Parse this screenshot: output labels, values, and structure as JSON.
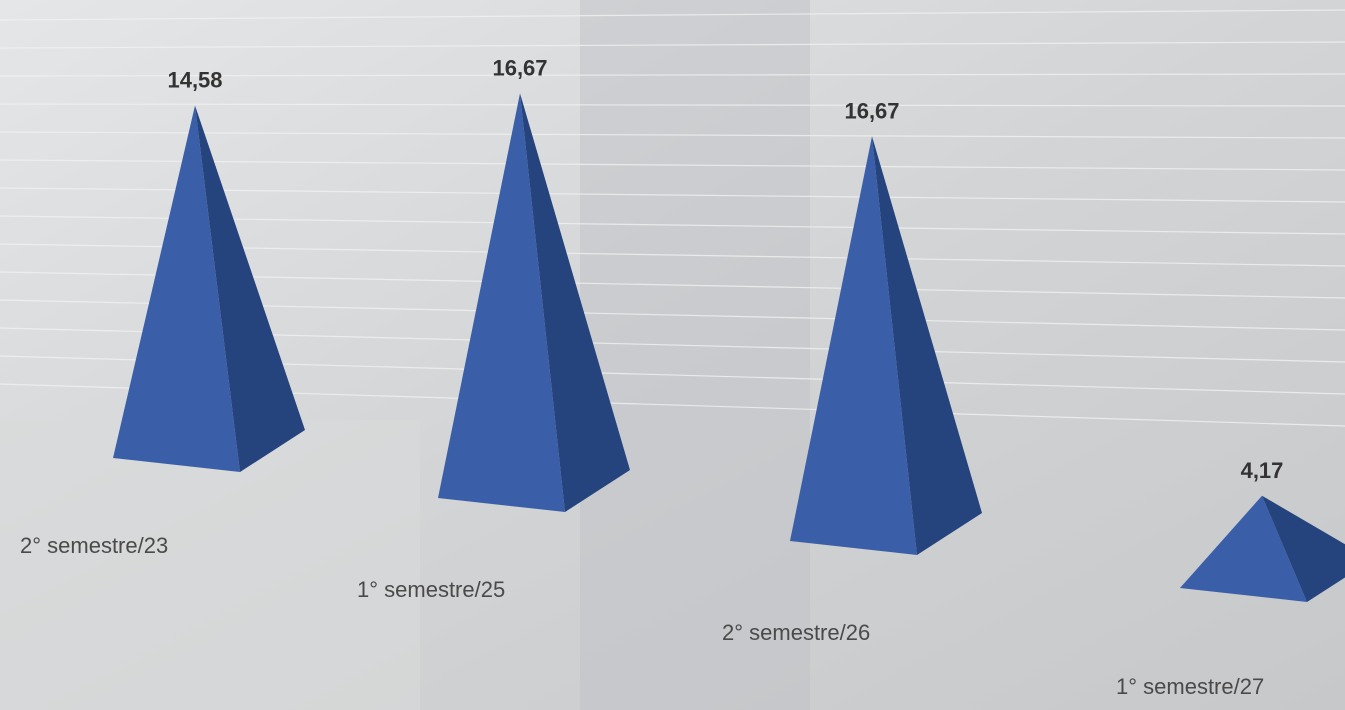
{
  "chart_data": {
    "type": "pyramid",
    "categories": [
      "2° semestre/23",
      "1° semestre/25",
      "2° semestre/26",
      "1° semestre/27"
    ],
    "values": [
      14.58,
      16.67,
      16.67,
      4.17
    ],
    "value_labels": [
      "14,58",
      "16,67",
      "16,67",
      "4,17"
    ],
    "color": "#3a5fa8"
  }
}
